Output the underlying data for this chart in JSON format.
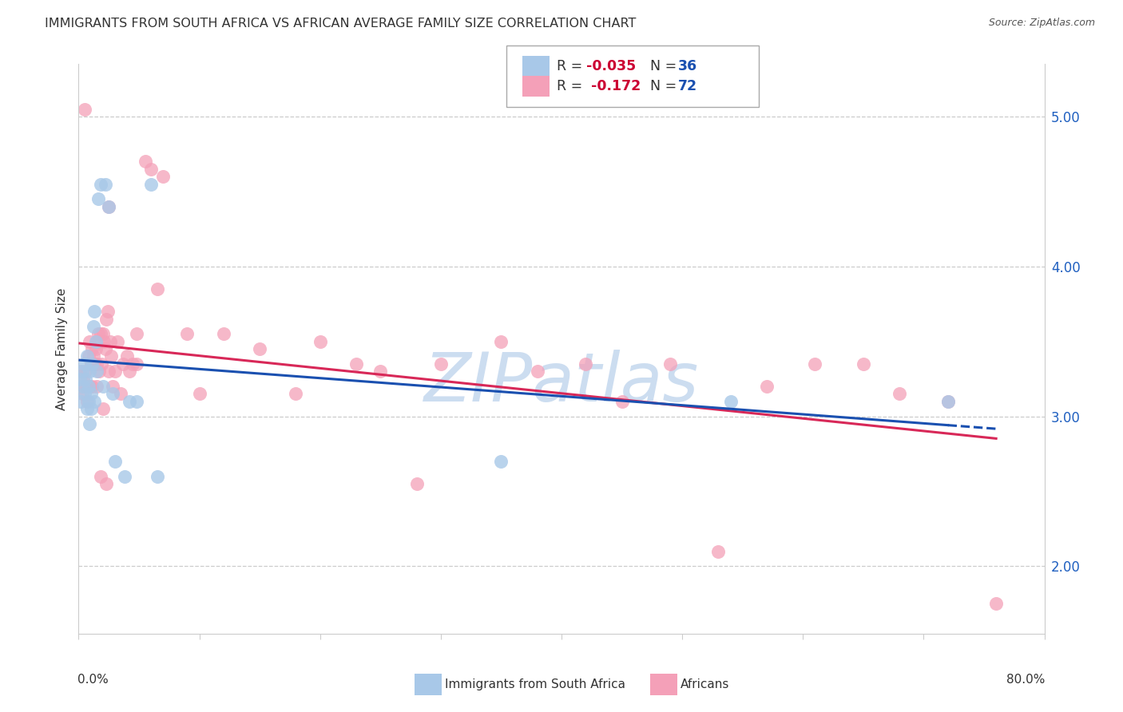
{
  "title": "IMMIGRANTS FROM SOUTH AFRICA VS AFRICAN AVERAGE FAMILY SIZE CORRELATION CHART",
  "source": "Source: ZipAtlas.com",
  "ylabel": "Average Family Size",
  "yticks": [
    2.0,
    3.0,
    4.0,
    5.0
  ],
  "xlim": [
    0.0,
    0.8
  ],
  "ylim": [
    1.55,
    5.35
  ],
  "legend_blue_r": "R = -0.035",
  "legend_blue_n": "N = 36",
  "legend_pink_r": "R =  -0.172",
  "legend_pink_n": "N = 72",
  "blue_scatter_x": [
    0.001,
    0.002,
    0.003,
    0.004,
    0.005,
    0.005,
    0.006,
    0.007,
    0.007,
    0.008,
    0.008,
    0.009,
    0.009,
    0.01,
    0.01,
    0.011,
    0.012,
    0.013,
    0.013,
    0.014,
    0.015,
    0.016,
    0.018,
    0.02,
    0.022,
    0.025,
    0.028,
    0.03,
    0.038,
    0.042,
    0.048,
    0.06,
    0.065,
    0.35,
    0.54,
    0.72
  ],
  "blue_scatter_y": [
    3.25,
    3.1,
    3.3,
    3.2,
    3.35,
    3.15,
    3.25,
    3.4,
    3.05,
    3.2,
    3.1,
    3.3,
    2.95,
    3.15,
    3.05,
    3.35,
    3.6,
    3.7,
    3.1,
    3.5,
    3.3,
    4.45,
    4.55,
    3.2,
    4.55,
    4.4,
    3.15,
    2.7,
    2.6,
    3.1,
    3.1,
    4.55,
    2.6,
    2.7,
    3.1,
    3.1
  ],
  "pink_scatter_x": [
    0.001,
    0.002,
    0.003,
    0.004,
    0.005,
    0.006,
    0.006,
    0.007,
    0.008,
    0.009,
    0.009,
    0.01,
    0.011,
    0.011,
    0.012,
    0.013,
    0.014,
    0.015,
    0.015,
    0.016,
    0.017,
    0.018,
    0.019,
    0.02,
    0.021,
    0.022,
    0.023,
    0.024,
    0.025,
    0.026,
    0.027,
    0.028,
    0.03,
    0.032,
    0.035,
    0.037,
    0.04,
    0.042,
    0.045,
    0.048,
    0.048,
    0.055,
    0.06,
    0.065,
    0.07,
    0.09,
    0.1,
    0.12,
    0.15,
    0.18,
    0.2,
    0.23,
    0.25,
    0.28,
    0.3,
    0.35,
    0.38,
    0.42,
    0.45,
    0.49,
    0.53,
    0.57,
    0.61,
    0.65,
    0.68,
    0.72,
    0.76,
    0.015,
    0.02,
    0.025,
    0.018,
    0.023
  ],
  "pink_scatter_y": [
    3.3,
    3.2,
    3.15,
    3.25,
    5.05,
    3.3,
    3.2,
    3.1,
    3.4,
    3.5,
    3.2,
    3.35,
    3.45,
    3.2,
    3.4,
    3.35,
    3.45,
    3.35,
    3.2,
    3.55,
    3.3,
    3.55,
    3.35,
    3.55,
    3.5,
    3.45,
    3.65,
    3.7,
    3.3,
    3.5,
    3.4,
    3.2,
    3.3,
    3.5,
    3.15,
    3.35,
    3.4,
    3.3,
    3.35,
    3.35,
    3.55,
    4.7,
    4.65,
    3.85,
    4.6,
    3.55,
    3.15,
    3.55,
    3.45,
    3.15,
    3.5,
    3.35,
    3.3,
    2.55,
    3.35,
    3.5,
    3.3,
    3.35,
    3.1,
    3.35,
    2.1,
    3.2,
    3.35,
    3.35,
    3.15,
    3.1,
    1.75,
    3.5,
    3.05,
    4.4,
    2.6,
    2.55
  ],
  "blue_color": "#a8c8e8",
  "pink_color": "#f4a0b8",
  "blue_line_color": "#1a50b0",
  "pink_line_color": "#d82858",
  "watermark_text": "ZIPatlas",
  "watermark_color": "#ccddf0",
  "background_color": "#ffffff",
  "grid_color": "#cccccc",
  "title_fontsize": 11.5,
  "axis_label_fontsize": 11
}
